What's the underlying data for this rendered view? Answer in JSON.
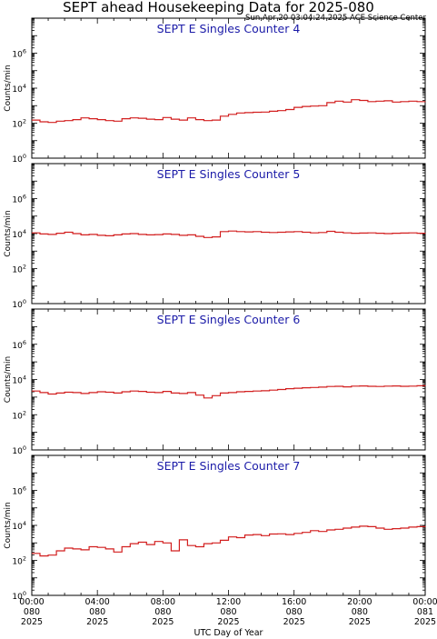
{
  "page": {
    "title": "SEPT ahead Housekeeping Data for 2025-080",
    "timestamp": "Sun Apr 20 03:04:24 2025 ACE Science Center"
  },
  "chart_data": [
    {
      "type": "line",
      "panel_label": "SEPT E Singles Counter 4",
      "ylabel": "Counts/min",
      "yscale": "log",
      "ylim": [
        1,
        100000000
      ],
      "ytick_labels": [
        "10^0",
        "10^2",
        "10^4",
        "10^6"
      ],
      "x_hours": [
        0,
        0.5,
        1,
        1.5,
        2,
        2.5,
        3,
        3.5,
        4,
        4.5,
        5,
        5.5,
        6,
        6.5,
        7,
        7.5,
        8,
        8.5,
        9,
        9.5,
        10,
        10.5,
        11,
        11.5,
        12,
        12.5,
        13,
        13.5,
        14,
        14.5,
        15,
        15.5,
        16,
        16.5,
        17,
        17.5,
        18,
        18.5,
        19,
        19.5,
        20,
        20.5,
        21,
        21.5,
        22,
        22.5,
        23,
        23.5,
        24
      ],
      "values": [
        150,
        120,
        110,
        130,
        140,
        160,
        200,
        180,
        160,
        140,
        130,
        180,
        200,
        190,
        170,
        160,
        210,
        170,
        150,
        200,
        160,
        140,
        150,
        250,
        320,
        380,
        400,
        420,
        430,
        480,
        520,
        600,
        800,
        900,
        950,
        1000,
        1500,
        1800,
        1600,
        2200,
        2000,
        1700,
        1800,
        1900,
        1600,
        1700,
        1800,
        1700,
        1750
      ],
      "series_color": "#d21f1f"
    },
    {
      "type": "line",
      "panel_label": "SEPT E Singles Counter 5",
      "ylabel": "Counts/min",
      "yscale": "log",
      "ylim": [
        1,
        100000000
      ],
      "ytick_labels": [
        "10^0",
        "10^2",
        "10^4",
        "10^6"
      ],
      "x_hours": [
        0,
        0.5,
        1,
        1.5,
        2,
        2.5,
        3,
        3.5,
        4,
        4.5,
        5,
        5.5,
        6,
        6.5,
        7,
        7.5,
        8,
        8.5,
        9,
        9.5,
        10,
        10.5,
        11,
        11.5,
        12,
        12.5,
        13,
        13.5,
        14,
        14.5,
        15,
        15.5,
        16,
        16.5,
        17,
        17.5,
        18,
        18.5,
        19,
        19.5,
        20,
        20.5,
        21,
        21.5,
        22,
        22.5,
        23,
        23.5,
        24
      ],
      "values": [
        11000,
        9500,
        9000,
        10500,
        12000,
        10000,
        8500,
        9000,
        8000,
        7500,
        8500,
        9500,
        10000,
        9000,
        8500,
        8800,
        9500,
        9000,
        8000,
        8500,
        7000,
        6000,
        6500,
        13000,
        14000,
        13000,
        12500,
        13000,
        12000,
        11500,
        12000,
        12500,
        13000,
        12000,
        11000,
        11500,
        13500,
        12000,
        11000,
        10500,
        10800,
        11000,
        10500,
        10000,
        10500,
        10800,
        11000,
        10500,
        10300
      ],
      "series_color": "#d21f1f"
    },
    {
      "type": "line",
      "panel_label": "SEPT E Singles Counter 6",
      "ylabel": "Counts/min",
      "yscale": "log",
      "ylim": [
        1,
        100000000
      ],
      "ytick_labels": [
        "10^0",
        "10^2",
        "10^4",
        "10^6"
      ],
      "x_hours": [
        0,
        0.5,
        1,
        1.5,
        2,
        2.5,
        3,
        3.5,
        4,
        4.5,
        5,
        5.5,
        6,
        6.5,
        7,
        7.5,
        8,
        8.5,
        9,
        9.5,
        10,
        10.5,
        11,
        11.5,
        12,
        12.5,
        13,
        13.5,
        14,
        14.5,
        15,
        15.5,
        16,
        16.5,
        17,
        17.5,
        18,
        18.5,
        19,
        19.5,
        20,
        20.5,
        21,
        21.5,
        22,
        22.5,
        23,
        23.5,
        24
      ],
      "values": [
        2200,
        1800,
        1500,
        1700,
        1900,
        1800,
        1600,
        1800,
        2000,
        1900,
        1700,
        2000,
        2200,
        2100,
        1900,
        1800,
        2100,
        1700,
        1600,
        1800,
        1300,
        900,
        1200,
        1700,
        1800,
        2000,
        2100,
        2200,
        2300,
        2500,
        2700,
        3000,
        3200,
        3400,
        3500,
        3700,
        4000,
        4100,
        3800,
        4200,
        4300,
        4100,
        4000,
        4200,
        4300,
        4100,
        4200,
        4400,
        4300
      ],
      "series_color": "#d21f1f"
    },
    {
      "type": "line",
      "panel_label": "SEPT E Singles Counter 7",
      "ylabel": "Counts/min",
      "yscale": "log",
      "ylim": [
        1,
        100000000
      ],
      "ytick_labels": [
        "10^0",
        "10^2",
        "10^4",
        "10^6"
      ],
      "x_hours": [
        0,
        0.5,
        1,
        1.5,
        2,
        2.5,
        3,
        3.5,
        4,
        4.5,
        5,
        5.5,
        6,
        6.5,
        7,
        7.5,
        8,
        8.5,
        9,
        9.5,
        10,
        10.5,
        11,
        11.5,
        12,
        12.5,
        13,
        13.5,
        14,
        14.5,
        15,
        15.5,
        16,
        16.5,
        17,
        17.5,
        18,
        18.5,
        19,
        19.5,
        20,
        20.5,
        21,
        21.5,
        22,
        22.5,
        23,
        23.5,
        24
      ],
      "values": [
        250,
        180,
        200,
        350,
        500,
        450,
        400,
        600,
        550,
        450,
        300,
        600,
        900,
        1100,
        800,
        1200,
        1000,
        350,
        1500,
        700,
        600,
        900,
        1000,
        1400,
        2200,
        2000,
        2800,
        3000,
        2600,
        3200,
        3300,
        3000,
        3500,
        4000,
        5000,
        4500,
        5500,
        6000,
        7000,
        8000,
        9000,
        8500,
        7000,
        6000,
        6500,
        7000,
        8000,
        8500,
        8200
      ],
      "series_color": "#d21f1f"
    }
  ],
  "x_axis": {
    "label": "UTC Day of Year",
    "ticks": [
      {
        "hour": 0,
        "lines": [
          "00:00",
          "080",
          "2025"
        ]
      },
      {
        "hour": 4,
        "lines": [
          "04:00",
          "080",
          "2025"
        ]
      },
      {
        "hour": 8,
        "lines": [
          "08:00",
          "080",
          "2025"
        ]
      },
      {
        "hour": 12,
        "lines": [
          "12:00",
          "080",
          "2025"
        ]
      },
      {
        "hour": 16,
        "lines": [
          "16:00",
          "080",
          "2025"
        ]
      },
      {
        "hour": 20,
        "lines": [
          "20:00",
          "080",
          "2025"
        ]
      },
      {
        "hour": 24,
        "lines": [
          "00:00",
          "081",
          "2025"
        ]
      }
    ]
  },
  "colors": {
    "series": "#d21f1f",
    "panel_label": "#1b1ba8",
    "axes": "#000000"
  }
}
